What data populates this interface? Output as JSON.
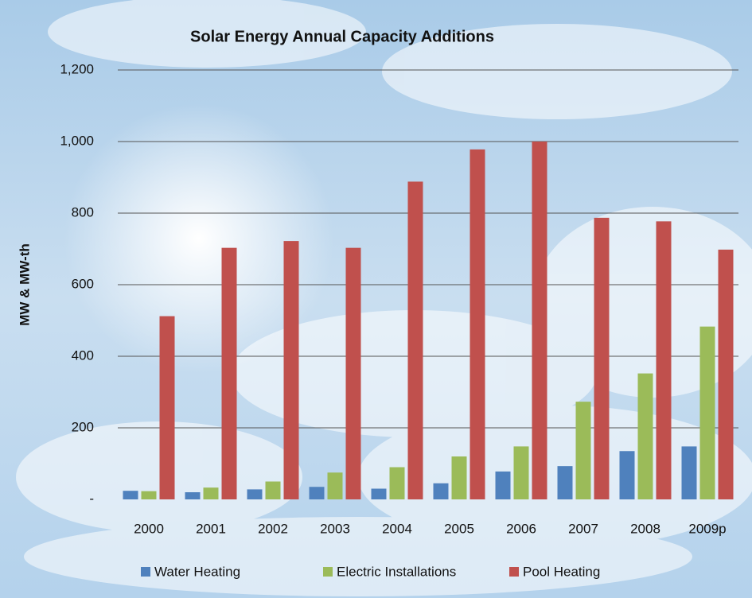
{
  "chart_data": {
    "type": "bar",
    "title": "Solar Energy Annual Capacity Additions",
    "y_label": "MW & MW-th",
    "categories": [
      "2000",
      "2001",
      "2002",
      "2003",
      "2004",
      "2005",
      "2006",
      "2007",
      "2008",
      "2009p"
    ],
    "series": [
      {
        "name": "Water Heating",
        "color": "#4f81bd",
        "values": [
          24,
          20,
          28,
          35,
          30,
          45,
          78,
          93,
          135,
          148
        ]
      },
      {
        "name": "Electric Installations",
        "color": "#9bbb59",
        "values": [
          23,
          33,
          50,
          75,
          90,
          120,
          148,
          273,
          352,
          483
        ]
      },
      {
        "name": "Pool Heating",
        "color": "#c0504d",
        "values": [
          512,
          703,
          722,
          703,
          888,
          978,
          1000,
          787,
          777,
          698
        ]
      }
    ],
    "ylim": [
      0,
      1200
    ],
    "yticks": [
      {
        "value": 0,
        "label": "-"
      },
      200,
      400,
      600,
      800,
      {
        "value": 1000,
        "label": "1,000"
      },
      {
        "value": 1200,
        "label": "1,200"
      }
    ],
    "grid": true,
    "legend": "bottom"
  }
}
